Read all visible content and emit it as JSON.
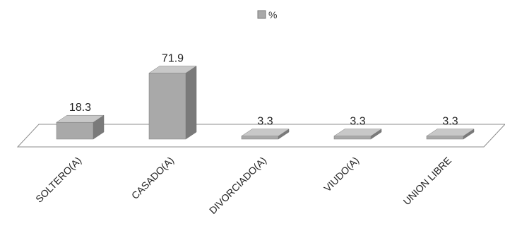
{
  "chart_data": {
    "type": "bar",
    "categories": [
      "SOLTERO(A)",
      "CASADO(A)",
      "DIVORCIADO(A)",
      "VIUDO(A)",
      "UNION LIBRE"
    ],
    "series": [
      {
        "name": "%",
        "values": [
          18.3,
          71.9,
          3.3,
          3.3,
          3.3
        ]
      }
    ],
    "title": "",
    "xlabel": "",
    "ylabel": "",
    "ylim": [
      0,
      80
    ],
    "grid": false,
    "legend": "top-center",
    "colors": {
      "front": "#a9a9a9",
      "top": "#c8c8c8",
      "side": "#7a7a7a",
      "floor": "#ffffff",
      "floor_stroke": "#8c8c8c"
    }
  }
}
